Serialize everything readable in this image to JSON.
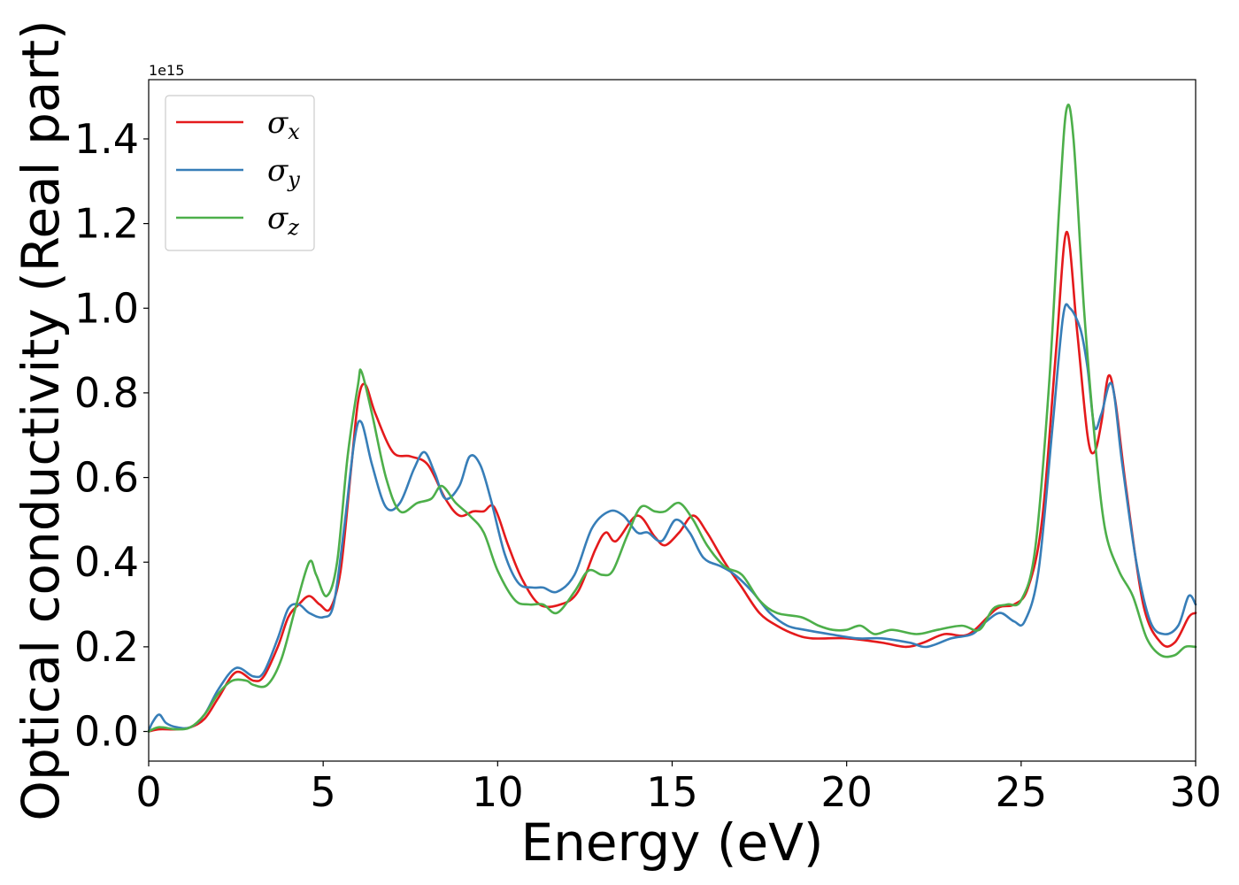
{
  "chart_data": {
    "type": "line",
    "xlabel": "Energy (eV)",
    "ylabel": "Optical conductivity (Real part)",
    "y_offset_text": "1e15",
    "xlim": [
      0,
      30
    ],
    "ylim": [
      -0.07,
      1.54
    ],
    "x_ticks": [
      0,
      5,
      10,
      15,
      20,
      25,
      30
    ],
    "x_tick_labels": [
      "0",
      "5",
      "10",
      "15",
      "20",
      "25",
      "30"
    ],
    "y_ticks": [
      0.0,
      0.2,
      0.4,
      0.6,
      0.8,
      1.0,
      1.2,
      1.4
    ],
    "y_tick_labels": [
      "0.0",
      "0.2",
      "0.4",
      "0.6",
      "0.8",
      "1.0",
      "1.2",
      "1.4"
    ],
    "grid": false,
    "legend_position": "upper-left",
    "series": [
      {
        "name": "σx",
        "base": "σ",
        "sub": "x",
        "color": "#e41a1c",
        "points": [
          [
            0,
            0.0
          ],
          [
            0.3,
            0.005
          ],
          [
            0.8,
            0.005
          ],
          [
            1.2,
            0.01
          ],
          [
            1.6,
            0.03
          ],
          [
            2.0,
            0.08
          ],
          [
            2.5,
            0.14
          ],
          [
            3.0,
            0.12
          ],
          [
            3.3,
            0.13
          ],
          [
            3.7,
            0.2
          ],
          [
            4.0,
            0.27
          ],
          [
            4.3,
            0.3
          ],
          [
            4.6,
            0.32
          ],
          [
            4.9,
            0.3
          ],
          [
            5.2,
            0.29
          ],
          [
            5.5,
            0.38
          ],
          [
            5.8,
            0.62
          ],
          [
            6.0,
            0.78
          ],
          [
            6.2,
            0.82
          ],
          [
            6.5,
            0.75
          ],
          [
            7.0,
            0.66
          ],
          [
            7.5,
            0.65
          ],
          [
            8.0,
            0.63
          ],
          [
            8.5,
            0.55
          ],
          [
            8.9,
            0.51
          ],
          [
            9.3,
            0.52
          ],
          [
            9.6,
            0.52
          ],
          [
            9.9,
            0.53
          ],
          [
            10.3,
            0.44
          ],
          [
            10.7,
            0.36
          ],
          [
            11.2,
            0.3
          ],
          [
            11.8,
            0.3
          ],
          [
            12.3,
            0.33
          ],
          [
            12.8,
            0.43
          ],
          [
            13.1,
            0.47
          ],
          [
            13.4,
            0.45
          ],
          [
            14.0,
            0.51
          ],
          [
            14.5,
            0.46
          ],
          [
            14.8,
            0.44
          ],
          [
            15.2,
            0.47
          ],
          [
            15.6,
            0.51
          ],
          [
            16.0,
            0.47
          ],
          [
            16.5,
            0.4
          ],
          [
            17.0,
            0.34
          ],
          [
            17.5,
            0.28
          ],
          [
            18.0,
            0.25
          ],
          [
            18.5,
            0.23
          ],
          [
            19.0,
            0.22
          ],
          [
            20.0,
            0.22
          ],
          [
            21.0,
            0.21
          ],
          [
            21.7,
            0.2
          ],
          [
            22.2,
            0.21
          ],
          [
            22.8,
            0.23
          ],
          [
            23.5,
            0.23
          ],
          [
            24.3,
            0.29
          ],
          [
            24.8,
            0.3
          ],
          [
            25.2,
            0.34
          ],
          [
            25.6,
            0.5
          ],
          [
            26.0,
            0.9
          ],
          [
            26.3,
            1.18
          ],
          [
            26.6,
            0.95
          ],
          [
            26.9,
            0.7
          ],
          [
            27.1,
            0.66
          ],
          [
            27.3,
            0.73
          ],
          [
            27.5,
            0.84
          ],
          [
            27.7,
            0.78
          ],
          [
            28.0,
            0.58
          ],
          [
            28.5,
            0.3
          ],
          [
            29.0,
            0.21
          ],
          [
            29.4,
            0.21
          ],
          [
            29.8,
            0.27
          ],
          [
            30.0,
            0.28
          ]
        ]
      },
      {
        "name": "σy",
        "base": "σ",
        "sub": "y",
        "color": "#377eb8",
        "points": [
          [
            0,
            0.0
          ],
          [
            0.1,
            0.02
          ],
          [
            0.3,
            0.04
          ],
          [
            0.5,
            0.02
          ],
          [
            0.8,
            0.01
          ],
          [
            1.2,
            0.01
          ],
          [
            1.6,
            0.04
          ],
          [
            2.0,
            0.1
          ],
          [
            2.5,
            0.15
          ],
          [
            3.0,
            0.13
          ],
          [
            3.3,
            0.14
          ],
          [
            3.7,
            0.22
          ],
          [
            4.0,
            0.29
          ],
          [
            4.3,
            0.3
          ],
          [
            4.6,
            0.28
          ],
          [
            5.0,
            0.27
          ],
          [
            5.3,
            0.3
          ],
          [
            5.6,
            0.48
          ],
          [
            5.9,
            0.69
          ],
          [
            6.1,
            0.73
          ],
          [
            6.4,
            0.63
          ],
          [
            6.8,
            0.53
          ],
          [
            7.2,
            0.54
          ],
          [
            7.6,
            0.62
          ],
          [
            7.9,
            0.66
          ],
          [
            8.2,
            0.61
          ],
          [
            8.5,
            0.55
          ],
          [
            8.9,
            0.58
          ],
          [
            9.2,
            0.65
          ],
          [
            9.5,
            0.63
          ],
          [
            9.8,
            0.55
          ],
          [
            10.2,
            0.42
          ],
          [
            10.6,
            0.35
          ],
          [
            11.0,
            0.34
          ],
          [
            11.3,
            0.34
          ],
          [
            11.7,
            0.33
          ],
          [
            12.2,
            0.37
          ],
          [
            12.7,
            0.48
          ],
          [
            13.2,
            0.52
          ],
          [
            13.6,
            0.51
          ],
          [
            14.0,
            0.47
          ],
          [
            14.3,
            0.47
          ],
          [
            14.7,
            0.45
          ],
          [
            15.1,
            0.5
          ],
          [
            15.5,
            0.47
          ],
          [
            15.9,
            0.41
          ],
          [
            16.4,
            0.39
          ],
          [
            16.8,
            0.37
          ],
          [
            17.3,
            0.33
          ],
          [
            17.8,
            0.28
          ],
          [
            18.3,
            0.25
          ],
          [
            18.8,
            0.24
          ],
          [
            19.5,
            0.23
          ],
          [
            20.3,
            0.22
          ],
          [
            21.0,
            0.22
          ],
          [
            21.8,
            0.21
          ],
          [
            22.3,
            0.2
          ],
          [
            23.0,
            0.22
          ],
          [
            23.6,
            0.23
          ],
          [
            24.0,
            0.26
          ],
          [
            24.4,
            0.28
          ],
          [
            24.8,
            0.26
          ],
          [
            25.1,
            0.26
          ],
          [
            25.5,
            0.38
          ],
          [
            25.9,
            0.72
          ],
          [
            26.2,
            0.98
          ],
          [
            26.4,
            1.0
          ],
          [
            26.7,
            0.95
          ],
          [
            26.9,
            0.86
          ],
          [
            27.1,
            0.72
          ],
          [
            27.3,
            0.75
          ],
          [
            27.6,
            0.82
          ],
          [
            27.9,
            0.63
          ],
          [
            28.3,
            0.4
          ],
          [
            28.7,
            0.26
          ],
          [
            29.1,
            0.23
          ],
          [
            29.5,
            0.25
          ],
          [
            29.8,
            0.32
          ],
          [
            30.0,
            0.3
          ]
        ]
      },
      {
        "name": "σz",
        "base": "σ",
        "sub": "z",
        "color": "#4daf4a",
        "points": [
          [
            0,
            0.0
          ],
          [
            0.3,
            0.01
          ],
          [
            0.8,
            0.005
          ],
          [
            1.2,
            0.01
          ],
          [
            1.6,
            0.04
          ],
          [
            2.0,
            0.09
          ],
          [
            2.4,
            0.12
          ],
          [
            2.8,
            0.12
          ],
          [
            3.0,
            0.11
          ],
          [
            3.4,
            0.11
          ],
          [
            3.8,
            0.17
          ],
          [
            4.2,
            0.29
          ],
          [
            4.6,
            0.4
          ],
          [
            4.8,
            0.37
          ],
          [
            5.1,
            0.32
          ],
          [
            5.4,
            0.4
          ],
          [
            5.7,
            0.65
          ],
          [
            6.0,
            0.82
          ],
          [
            6.1,
            0.85
          ],
          [
            6.4,
            0.75
          ],
          [
            6.8,
            0.6
          ],
          [
            7.2,
            0.52
          ],
          [
            7.7,
            0.54
          ],
          [
            8.1,
            0.55
          ],
          [
            8.4,
            0.58
          ],
          [
            8.8,
            0.54
          ],
          [
            9.2,
            0.51
          ],
          [
            9.6,
            0.47
          ],
          [
            10.0,
            0.38
          ],
          [
            10.5,
            0.31
          ],
          [
            10.9,
            0.3
          ],
          [
            11.3,
            0.3
          ],
          [
            11.7,
            0.28
          ],
          [
            12.2,
            0.33
          ],
          [
            12.6,
            0.38
          ],
          [
            13.0,
            0.37
          ],
          [
            13.3,
            0.38
          ],
          [
            13.7,
            0.46
          ],
          [
            14.1,
            0.53
          ],
          [
            14.5,
            0.52
          ],
          [
            14.8,
            0.52
          ],
          [
            15.2,
            0.54
          ],
          [
            15.6,
            0.5
          ],
          [
            16.0,
            0.44
          ],
          [
            16.5,
            0.39
          ],
          [
            17.0,
            0.37
          ],
          [
            17.5,
            0.31
          ],
          [
            18.0,
            0.28
          ],
          [
            18.7,
            0.27
          ],
          [
            19.2,
            0.25
          ],
          [
            19.6,
            0.24
          ],
          [
            20.0,
            0.24
          ],
          [
            20.4,
            0.25
          ],
          [
            20.8,
            0.23
          ],
          [
            21.3,
            0.24
          ],
          [
            22.0,
            0.23
          ],
          [
            22.6,
            0.24
          ],
          [
            23.3,
            0.25
          ],
          [
            23.8,
            0.24
          ],
          [
            24.2,
            0.29
          ],
          [
            24.6,
            0.3
          ],
          [
            25.0,
            0.31
          ],
          [
            25.4,
            0.43
          ],
          [
            25.8,
            0.82
          ],
          [
            26.1,
            1.25
          ],
          [
            26.3,
            1.47
          ],
          [
            26.5,
            1.4
          ],
          [
            26.8,
            1.0
          ],
          [
            27.1,
            0.7
          ],
          [
            27.4,
            0.48
          ],
          [
            27.8,
            0.38
          ],
          [
            28.2,
            0.32
          ],
          [
            28.6,
            0.22
          ],
          [
            29.0,
            0.18
          ],
          [
            29.4,
            0.18
          ],
          [
            29.7,
            0.2
          ],
          [
            30.0,
            0.2
          ]
        ]
      }
    ]
  }
}
